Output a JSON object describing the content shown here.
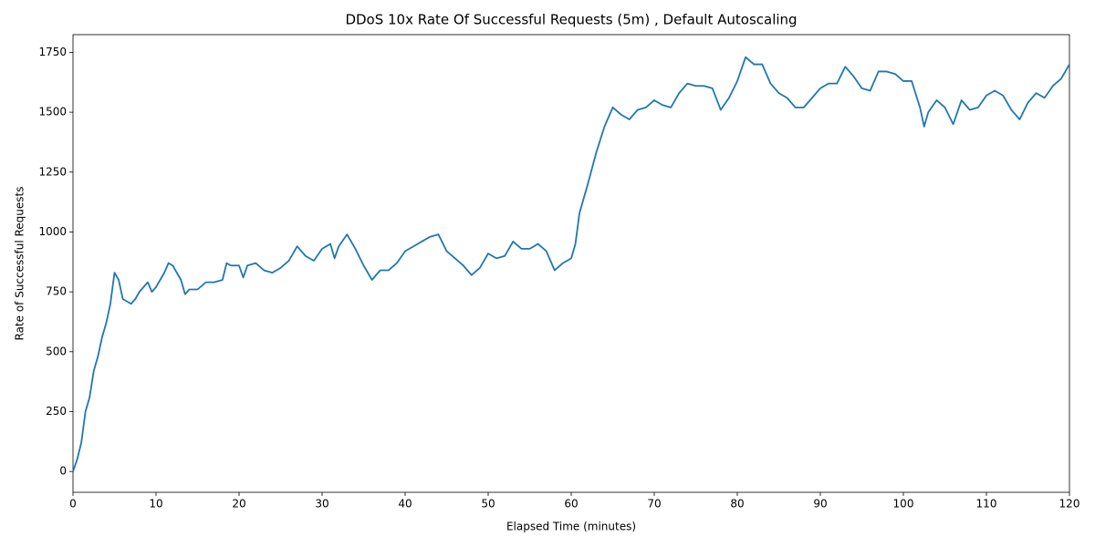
{
  "chart_data": {
    "type": "line",
    "title": "DDoS 10x Rate Of Successful Requests (5m) , Default Autoscaling",
    "x_label": "Elapsed Time (minutes)",
    "y_label": "Rate of Successful Requests",
    "x": [
      0,
      0.5,
      1,
      1.5,
      2,
      2.5,
      3,
      3.5,
      4,
      4.5,
      5,
      5.5,
      6,
      6.5,
      7,
      7.5,
      8,
      9,
      9.5,
      10,
      11,
      11.5,
      12,
      13,
      13.5,
      14,
      15,
      16,
      17,
      18,
      18.5,
      19,
      20,
      20.5,
      21,
      22,
      23,
      24,
      25,
      26,
      27,
      28,
      29,
      30,
      31,
      31.5,
      32,
      33,
      34,
      35,
      36,
      37,
      38,
      39,
      40,
      41,
      42,
      43,
      44,
      45,
      46,
      47,
      48,
      49,
      50,
      51,
      52,
      53,
      54,
      55,
      56,
      57,
      58,
      59,
      60,
      60.5,
      61,
      62,
      63,
      64,
      65,
      66,
      67,
      68,
      69,
      70,
      71,
      72,
      73,
      74,
      75,
      76,
      77,
      78,
      79,
      80,
      81,
      82,
      83,
      84,
      85,
      86,
      87,
      88,
      89,
      90,
      91,
      92,
      93,
      94,
      95,
      96,
      97,
      98,
      99,
      100,
      101,
      102,
      102.5,
      103,
      104,
      105,
      106,
      107,
      108,
      109,
      110,
      111,
      112,
      113,
      114,
      115,
      116,
      117,
      118,
      119,
      120
    ],
    "series": [
      {
        "name": "Rate of Successful Requests",
        "color": "#1f77b4",
        "values": [
          0,
          50,
          120,
          250,
          310,
          420,
          480,
          560,
          620,
          700,
          830,
          800,
          720,
          710,
          700,
          720,
          750,
          790,
          750,
          770,
          830,
          870,
          860,
          800,
          740,
          760,
          760,
          790,
          790,
          800,
          870,
          860,
          860,
          810,
          860,
          870,
          840,
          830,
          850,
          880,
          940,
          900,
          880,
          930,
          950,
          890,
          940,
          990,
          930,
          860,
          800,
          840,
          840,
          870,
          920,
          940,
          960,
          980,
          990,
          920,
          890,
          860,
          820,
          850,
          910,
          890,
          900,
          960,
          930,
          930,
          950,
          920,
          840,
          870,
          890,
          950,
          1080,
          1200,
          1330,
          1440,
          1520,
          1490,
          1470,
          1510,
          1520,
          1550,
          1530,
          1520,
          1580,
          1620,
          1610,
          1610,
          1600,
          1510,
          1560,
          1630,
          1730,
          1700,
          1700,
          1620,
          1580,
          1560,
          1520,
          1520,
          1560,
          1600,
          1620,
          1620,
          1690,
          1650,
          1600,
          1590,
          1670,
          1670,
          1660,
          1630,
          1630,
          1520,
          1440,
          1500,
          1550,
          1520,
          1450,
          1550,
          1510,
          1520,
          1570,
          1590,
          1570,
          1510,
          1470,
          1540,
          1580,
          1560,
          1610,
          1640,
          1700
        ]
      }
    ],
    "xlim": [
      0,
      120
    ],
    "xticks": [
      0,
      10,
      20,
      30,
      40,
      50,
      60,
      70,
      80,
      90,
      100,
      110,
      120
    ],
    "ylim": [
      -87,
      1824
    ],
    "yticks": [
      0,
      250,
      500,
      750,
      1000,
      1250,
      1500,
      1750
    ],
    "grid": false
  }
}
